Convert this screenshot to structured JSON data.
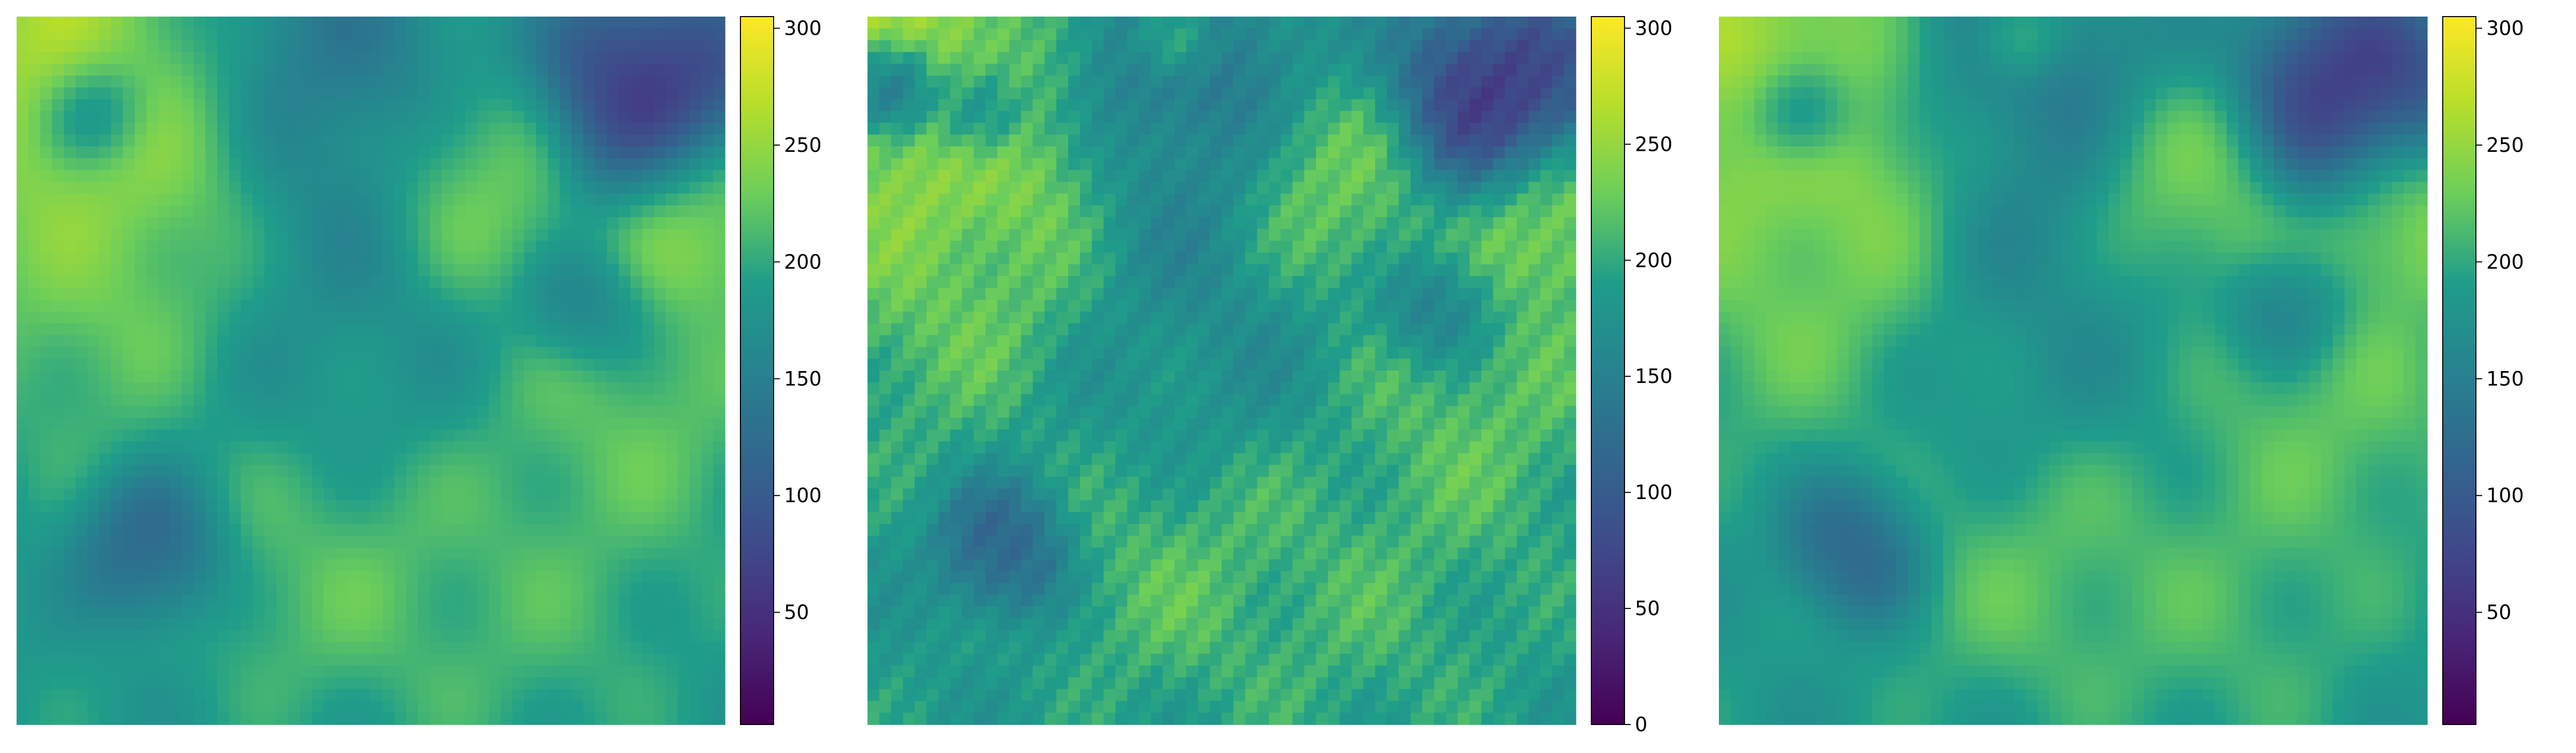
{
  "chart_data": [
    {
      "type": "heatmap",
      "title": "",
      "xlabel": "",
      "ylabel": "",
      "axes_visible": false,
      "colormap": "viridis",
      "value_range": [
        2,
        305
      ],
      "colorbar": {
        "orientation": "vertical",
        "placement": "right",
        "ticks": [
          50,
          100,
          150,
          200,
          250,
          300
        ],
        "tick_labels": [
          "50",
          "100",
          "150",
          "200",
          "250",
          "300"
        ]
      },
      "smoothing": "high",
      "features": [
        {
          "x": 0.08,
          "y": 0.08,
          "r": 0.16,
          "v": 285
        },
        {
          "x": 0.22,
          "y": 0.2,
          "r": 0.12,
          "v": 260
        },
        {
          "x": 0.15,
          "y": 0.35,
          "r": 0.18,
          "v": 245
        },
        {
          "x": 0.4,
          "y": 0.1,
          "r": 0.15,
          "v": 120
        },
        {
          "x": 0.42,
          "y": 0.3,
          "r": 0.1,
          "v": 150
        },
        {
          "x": 0.65,
          "y": 0.25,
          "r": 0.1,
          "v": 250
        },
        {
          "x": 0.9,
          "y": 0.12,
          "r": 0.1,
          "v": 20
        },
        {
          "x": 0.97,
          "y": 0.28,
          "r": 0.08,
          "v": 270
        },
        {
          "x": 0.85,
          "y": 0.55,
          "r": 0.14,
          "v": 235
        },
        {
          "x": 0.45,
          "y": 0.5,
          "r": 0.18,
          "v": 165
        },
        {
          "x": 0.2,
          "y": 0.75,
          "r": 0.05,
          "v": 90
        },
        {
          "x": 0.45,
          "y": 0.75,
          "r": 0.14,
          "v": 235
        },
        {
          "x": 0.7,
          "y": 0.8,
          "r": 0.15,
          "v": 220
        },
        {
          "x": 0.8,
          "y": 0.42,
          "r": 0.04,
          "v": 120
        },
        {
          "x": 0.12,
          "y": 0.14,
          "r": 0.03,
          "v": 70
        }
      ]
    },
    {
      "type": "heatmap",
      "title": "",
      "xlabel": "",
      "ylabel": "",
      "axes_visible": false,
      "colormap": "viridis",
      "value_range": [
        0,
        305
      ],
      "colorbar": {
        "orientation": "vertical",
        "placement": "right",
        "ticks": [
          0,
          50,
          100,
          150,
          200,
          250,
          300
        ],
        "tick_labels": [
          "0",
          "50",
          "100",
          "150",
          "200",
          "250",
          "300"
        ]
      },
      "smoothing": "low",
      "features": [
        {
          "x": 0.08,
          "y": 0.08,
          "r": 0.16,
          "v": 285
        },
        {
          "x": 0.22,
          "y": 0.2,
          "r": 0.12,
          "v": 265
        },
        {
          "x": 0.15,
          "y": 0.35,
          "r": 0.18,
          "v": 240
        },
        {
          "x": 0.4,
          "y": 0.1,
          "r": 0.15,
          "v": 110
        },
        {
          "x": 0.42,
          "y": 0.3,
          "r": 0.1,
          "v": 150
        },
        {
          "x": 0.65,
          "y": 0.25,
          "r": 0.1,
          "v": 245
        },
        {
          "x": 0.9,
          "y": 0.12,
          "r": 0.1,
          "v": 20
        },
        {
          "x": 0.97,
          "y": 0.28,
          "r": 0.08,
          "v": 270
        },
        {
          "x": 0.85,
          "y": 0.55,
          "r": 0.14,
          "v": 230
        },
        {
          "x": 0.45,
          "y": 0.5,
          "r": 0.18,
          "v": 160
        },
        {
          "x": 0.2,
          "y": 0.75,
          "r": 0.05,
          "v": 85
        },
        {
          "x": 0.45,
          "y": 0.75,
          "r": 0.14,
          "v": 230
        },
        {
          "x": 0.7,
          "y": 0.8,
          "r": 0.15,
          "v": 215
        },
        {
          "x": 0.8,
          "y": 0.42,
          "r": 0.04,
          "v": 115
        },
        {
          "x": 0.04,
          "y": 0.1,
          "r": 0.03,
          "v": 10
        },
        {
          "x": 0.16,
          "y": 0.14,
          "r": 0.03,
          "v": 20
        },
        {
          "x": 0.43,
          "y": 0.03,
          "r": 0.02,
          "v": 290
        }
      ]
    },
    {
      "type": "heatmap",
      "title": "",
      "xlabel": "",
      "ylabel": "",
      "axes_visible": false,
      "colormap": "viridis",
      "value_range": [
        2,
        305
      ],
      "colorbar": {
        "orientation": "vertical",
        "placement": "right",
        "ticks": [
          50,
          100,
          150,
          200,
          250,
          300
        ],
        "tick_labels": [
          "50",
          "100",
          "150",
          "200",
          "250",
          "300"
        ]
      },
      "smoothing": "medium",
      "features": [
        {
          "x": 0.08,
          "y": 0.08,
          "r": 0.16,
          "v": 285
        },
        {
          "x": 0.22,
          "y": 0.2,
          "r": 0.12,
          "v": 260
        },
        {
          "x": 0.15,
          "y": 0.35,
          "r": 0.18,
          "v": 245
        },
        {
          "x": 0.4,
          "y": 0.1,
          "r": 0.15,
          "v": 120
        },
        {
          "x": 0.42,
          "y": 0.3,
          "r": 0.1,
          "v": 150
        },
        {
          "x": 0.65,
          "y": 0.25,
          "r": 0.1,
          "v": 250
        },
        {
          "x": 0.9,
          "y": 0.12,
          "r": 0.1,
          "v": 20
        },
        {
          "x": 0.97,
          "y": 0.28,
          "r": 0.08,
          "v": 270
        },
        {
          "x": 0.85,
          "y": 0.55,
          "r": 0.14,
          "v": 235
        },
        {
          "x": 0.45,
          "y": 0.5,
          "r": 0.18,
          "v": 165
        },
        {
          "x": 0.2,
          "y": 0.75,
          "r": 0.05,
          "v": 90
        },
        {
          "x": 0.45,
          "y": 0.75,
          "r": 0.14,
          "v": 235
        },
        {
          "x": 0.7,
          "y": 0.8,
          "r": 0.15,
          "v": 220
        },
        {
          "x": 0.8,
          "y": 0.42,
          "r": 0.04,
          "v": 120
        },
        {
          "x": 0.12,
          "y": 0.14,
          "r": 0.03,
          "v": 30
        },
        {
          "x": 0.42,
          "y": 0.03,
          "r": 0.02,
          "v": 280
        }
      ]
    }
  ]
}
